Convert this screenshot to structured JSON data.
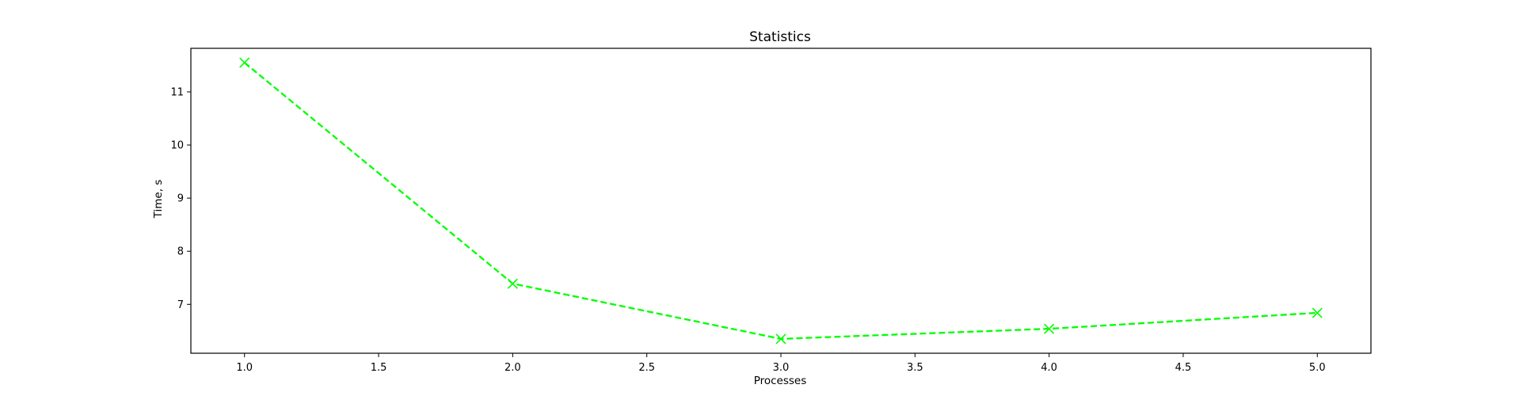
{
  "chart_data": {
    "type": "line",
    "title": "Statistics",
    "xlabel": "Processes",
    "ylabel": "Time, s",
    "xlim": [
      0.8,
      5.2
    ],
    "ylim": [
      6.08,
      11.82
    ],
    "x_ticks": [
      "1.0",
      "1.5",
      "2.0",
      "2.5",
      "3.0",
      "3.5",
      "4.0",
      "4.5",
      "5.0"
    ],
    "y_ticks": [
      "7",
      "8",
      "9",
      "10",
      "11"
    ],
    "grid": false,
    "series": [
      {
        "x": [
          1,
          2,
          3,
          4,
          5
        ],
        "values": [
          11.55,
          7.39,
          6.35,
          6.54,
          6.84
        ],
        "color": "#00ff00",
        "line_style": "dashed",
        "marker": "x"
      }
    ]
  }
}
